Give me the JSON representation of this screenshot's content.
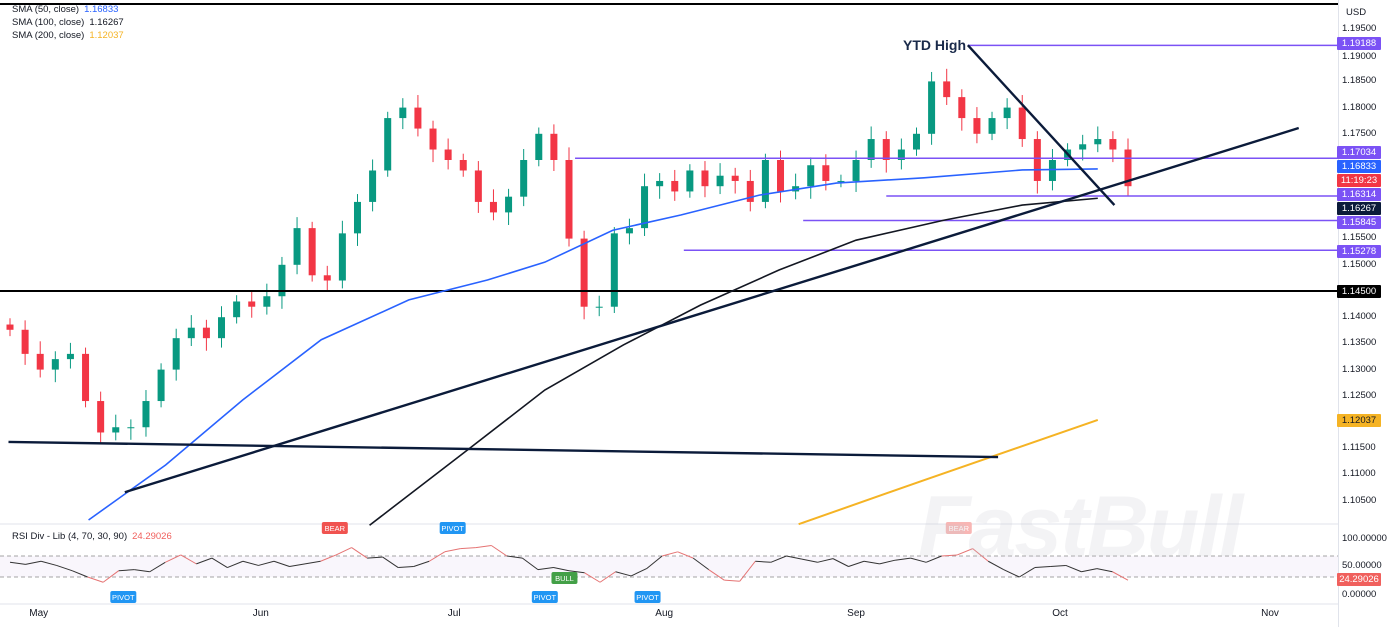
{
  "legend": [
    {
      "label": "SMA (50, close)",
      "value": "1.16833",
      "color": "#2962ff"
    },
    {
      "label": "SMA (100, close)",
      "value": "1.16267",
      "color": "#131722"
    },
    {
      "label": "SMA (200, close)",
      "value": "1.12037",
      "color": "#f5b324"
    }
  ],
  "currency": "USD",
  "annotation_text": "YTD High",
  "watermark": "FastBull",
  "rsi_legend": {
    "label": "RSI Div - Lib (4, 70, 30, 90)",
    "value": "24.29026"
  },
  "chart_data": {
    "type": "candlestick",
    "x_ticks": [
      {
        "label": "May",
        "index": 1.9
      },
      {
        "label": "Jun",
        "index": 16.6
      },
      {
        "label": "Jul",
        "index": 29.4
      },
      {
        "label": "Aug",
        "index": 43.3
      },
      {
        "label": "Sep",
        "index": 56
      },
      {
        "label": "Oct",
        "index": 69.5
      },
      {
        "label": "Nov",
        "index": 83.4
      }
    ],
    "y_ticks": [
      "1.19500",
      "1.19000",
      "1.18500",
      "1.18000",
      "1.17500",
      "1.15500",
      "1.15000",
      "1.14000",
      "1.13500",
      "1.13000",
      "1.12500",
      "1.11500",
      "1.11000",
      "1.10500"
    ],
    "y_tick_values": [
      1.195,
      1.19,
      1.185,
      1.18,
      1.175,
      1.155,
      1.15,
      1.14,
      1.135,
      1.13,
      1.125,
      1.115,
      1.11,
      1.105
    ],
    "ylim": [
      1.097,
      1.1985
    ],
    "closes": [
      1.1376,
      1.133,
      1.13,
      1.132,
      1.133,
      1.124,
      1.118,
      1.119,
      1.119,
      1.124,
      1.13,
      1.136,
      1.138,
      1.136,
      1.14,
      1.143,
      1.142,
      1.144,
      1.15,
      1.157,
      1.148,
      1.147,
      1.156,
      1.162,
      1.168,
      1.178,
      1.18,
      1.176,
      1.172,
      1.17,
      1.168,
      1.162,
      1.16,
      1.163,
      1.17,
      1.175,
      1.17,
      1.155,
      1.142,
      1.142,
      1.156,
      1.157,
      1.165,
      1.166,
      1.164,
      1.168,
      1.165,
      1.167,
      1.166,
      1.162,
      1.17,
      1.164,
      1.165,
      1.169,
      1.166,
      1.166,
      1.17,
      1.174,
      1.17,
      1.172,
      1.175,
      1.185,
      1.182,
      1.178,
      1.175,
      1.178,
      1.18,
      1.174,
      1.166,
      1.17,
      1.172,
      1.173,
      1.174,
      1.172,
      1.165
    ],
    "series": [
      {
        "name": "SMA (50, close)",
        "color": "#2962ff",
        "points": [
          [
            5.2,
            1.1013
          ],
          [
            10.3,
            1.1118
          ],
          [
            15.4,
            1.1242
          ],
          [
            20.6,
            1.1357
          ],
          [
            26.4,
            1.1433
          ],
          [
            31.6,
            1.1471
          ],
          [
            35.4,
            1.1505
          ],
          [
            39.9,
            1.1566
          ],
          [
            44.4,
            1.1595
          ],
          [
            49.6,
            1.1633
          ],
          [
            54.7,
            1.1656
          ],
          [
            60.5,
            1.1666
          ],
          [
            67,
            1.1681
          ],
          [
            72,
            1.1683
          ]
        ]
      },
      {
        "name": "SMA (100, close)",
        "color": "#131722",
        "points": [
          [
            23.8,
            1.1003
          ],
          [
            30.3,
            1.1147
          ],
          [
            35.4,
            1.1261
          ],
          [
            40.6,
            1.1347
          ],
          [
            45.7,
            1.1423
          ],
          [
            50.9,
            1.149
          ],
          [
            56,
            1.1547
          ],
          [
            61.8,
            1.1585
          ],
          [
            67,
            1.1614
          ],
          [
            72,
            1.1627
          ]
        ]
      },
      {
        "name": "SMA (200, close)",
        "color": "#f5b324",
        "points": [
          [
            52.2,
            1.1005
          ],
          [
            60.5,
            1.1089
          ],
          [
            72,
            1.1204
          ]
        ]
      }
    ],
    "trendlines": [
      {
        "from": [
          7.6,
          1.1066
        ],
        "to": [
          85.3,
          1.1761
        ],
        "color": "#0b1b3a"
      },
      {
        "from": [
          63.4,
          1.1919
        ],
        "to": [
          73.1,
          1.1614
        ],
        "color": "#0b1b3a"
      },
      {
        "from": [
          -0.1,
          1.1162
        ],
        "to": [
          65.4,
          1.1133
        ],
        "color": "#0b1b3a"
      }
    ],
    "horizontal_levels": [
      {
        "price": 1.19188,
        "label": "1.19188",
        "from_index": 63.4,
        "color": "#7b52f5"
      },
      {
        "price": 1.17034,
        "label": "1.17034",
        "from_index": 37.4,
        "color": "#7b52f5"
      },
      {
        "price": 1.16314,
        "label": "1.16314",
        "from_index": 58,
        "color": "#7b52f5"
      },
      {
        "price": 1.15845,
        "label": "1.15845",
        "from_index": 52.5,
        "color": "#7b52f5"
      },
      {
        "price": 1.15278,
        "label": "1.15278",
        "from_index": 44.6,
        "color": "#7b52f5"
      },
      {
        "price": 1.145,
        "label": "1.14500",
        "from_index": -1,
        "color": "#000000"
      }
    ],
    "price_tags": [
      {
        "label": "1.16833",
        "price": 1.16833,
        "color": "#2962ff"
      },
      {
        "label": "11:19:23",
        "price": 1.166,
        "color": "#f23645"
      },
      {
        "label": "1.16267",
        "price": 1.16267,
        "color": "#0b1b3a"
      },
      {
        "label": "1.12037",
        "price": 1.12037,
        "color": "#f5b324",
        "text_color": "#131722"
      }
    ],
    "colors": {
      "up": "#089981",
      "down": "#f23645"
    },
    "rsi": {
      "levels": [
        70,
        30
      ],
      "ylim": [
        0,
        100
      ],
      "y_ticks": [
        "100.00000",
        "50.00000",
        "0.00000"
      ],
      "current": "24.29026",
      "values": [
        58,
        54,
        60,
        52,
        42,
        30,
        20,
        42,
        44,
        40,
        58,
        72,
        55,
        66,
        48,
        60,
        52,
        60,
        50,
        55,
        60,
        72,
        86,
        66,
        68,
        48,
        50,
        60,
        78,
        84,
        86,
        90,
        70,
        66,
        44,
        48,
        42,
        38,
        20,
        40,
        32,
        46,
        70,
        78,
        66,
        44,
        24,
        22,
        60,
        58,
        70,
        64,
        58,
        65,
        50,
        60,
        55,
        62,
        66,
        58,
        70,
        72,
        84,
        60,
        44,
        30,
        48,
        50,
        52,
        40,
        46,
        40,
        24
      ],
      "markers": [
        {
          "label": "PIVOT",
          "index": 7.5,
          "type": "low",
          "color": "#2196f3"
        },
        {
          "label": "BEAR",
          "index": 21.5,
          "type": "high",
          "color": "#f05350"
        },
        {
          "label": "PIVOT",
          "index": 29.3,
          "type": "high",
          "color": "#2196f3"
        },
        {
          "label": "PIVOT",
          "index": 35.4,
          "type": "low",
          "color": "#2196f3"
        },
        {
          "label": "BULL",
          "index": 36.7,
          "type": "low2",
          "color": "#43a047"
        },
        {
          "label": "PIVOT",
          "index": 42.2,
          "type": "low",
          "color": "#2196f3"
        },
        {
          "label": "BEAR",
          "index": 62.8,
          "type": "high",
          "color": "#f8b6b4"
        }
      ]
    }
  }
}
